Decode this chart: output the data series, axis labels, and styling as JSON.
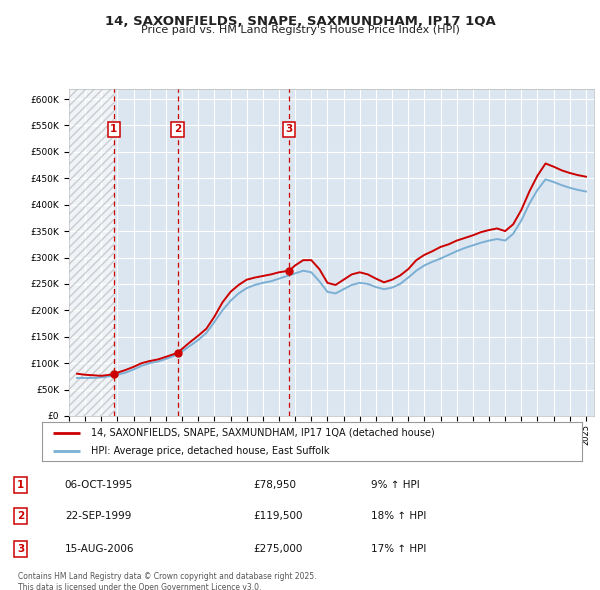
{
  "title": "14, SAXONFIELDS, SNAPE, SAXMUNDHAM, IP17 1QA",
  "subtitle": "Price paid vs. HM Land Registry's House Price Index (HPI)",
  "legend_line1": "14, SAXONFIELDS, SNAPE, SAXMUNDHAM, IP17 1QA (detached house)",
  "legend_line2": "HPI: Average price, detached house, East Suffolk",
  "transactions": [
    {
      "num": 1,
      "date": "06-OCT-1995",
      "price": 78950,
      "hpi_pct": "9% ↑ HPI",
      "year": 1995.77
    },
    {
      "num": 2,
      "date": "22-SEP-1999",
      "price": 119500,
      "hpi_pct": "18% ↑ HPI",
      "year": 1999.72
    },
    {
      "num": 3,
      "date": "15-AUG-2006",
      "price": 275000,
      "hpi_pct": "17% ↑ HPI",
      "year": 2006.62
    }
  ],
  "ylabel_ticks": [
    "£0",
    "£50K",
    "£100K",
    "£150K",
    "£200K",
    "£250K",
    "£300K",
    "£350K",
    "£400K",
    "£450K",
    "£500K",
    "£550K",
    "£600K"
  ],
  "ytick_vals": [
    0,
    50000,
    100000,
    150000,
    200000,
    250000,
    300000,
    350000,
    400000,
    450000,
    500000,
    550000,
    600000
  ],
  "ylim": [
    0,
    620000
  ],
  "xlim_start": 1993.0,
  "xlim_end": 2025.5,
  "hatch_end": 1995.77,
  "plot_bg": "#dce6f0",
  "grid_color": "#ffffff",
  "red_line_color": "#cc0000",
  "blue_line_color": "#7bafd4",
  "footnote": "Contains HM Land Registry data © Crown copyright and database right 2025.\nThis data is licensed under the Open Government Licence v3.0.",
  "red_hpi_line": {
    "years": [
      1993.5,
      1994.0,
      1994.5,
      1995.0,
      1995.77,
      1996.0,
      1996.5,
      1997.0,
      1997.5,
      1998.0,
      1998.5,
      1999.0,
      1999.72,
      2000.0,
      2000.5,
      2001.0,
      2001.5,
      2002.0,
      2002.5,
      2003.0,
      2003.5,
      2004.0,
      2004.5,
      2005.0,
      2005.5,
      2006.0,
      2006.62,
      2007.0,
      2007.5,
      2008.0,
      2008.5,
      2009.0,
      2009.5,
      2010.0,
      2010.5,
      2011.0,
      2011.5,
      2012.0,
      2012.5,
      2013.0,
      2013.5,
      2014.0,
      2014.5,
      2015.0,
      2015.5,
      2016.0,
      2016.5,
      2017.0,
      2017.5,
      2018.0,
      2018.5,
      2019.0,
      2019.5,
      2020.0,
      2020.5,
      2021.0,
      2021.5,
      2022.0,
      2022.5,
      2023.0,
      2023.5,
      2024.0,
      2024.5,
      2025.0
    ],
    "values": [
      80000,
      78000,
      77000,
      76000,
      78950,
      82000,
      87000,
      93000,
      100000,
      104000,
      107000,
      112000,
      119500,
      127000,
      140000,
      152000,
      165000,
      188000,
      215000,
      235000,
      248000,
      258000,
      262000,
      265000,
      268000,
      272000,
      275000,
      285000,
      295000,
      295000,
      278000,
      252000,
      248000,
      258000,
      268000,
      272000,
      268000,
      260000,
      253000,
      258000,
      266000,
      278000,
      295000,
      305000,
      312000,
      320000,
      325000,
      332000,
      337000,
      342000,
      348000,
      352000,
      355000,
      350000,
      363000,
      390000,
      425000,
      455000,
      478000,
      472000,
      465000,
      460000,
      456000,
      453000
    ]
  },
  "blue_hpi_line": {
    "years": [
      1993.5,
      1994.0,
      1994.5,
      1995.0,
      1995.5,
      1996.0,
      1996.5,
      1997.0,
      1997.5,
      1998.0,
      1998.5,
      1999.0,
      1999.5,
      2000.0,
      2000.5,
      2001.0,
      2001.5,
      2002.0,
      2002.5,
      2003.0,
      2003.5,
      2004.0,
      2004.5,
      2005.0,
      2005.5,
      2006.0,
      2006.5,
      2007.0,
      2007.5,
      2008.0,
      2008.5,
      2009.0,
      2009.5,
      2010.0,
      2010.5,
      2011.0,
      2011.5,
      2012.0,
      2012.5,
      2013.0,
      2013.5,
      2014.0,
      2014.5,
      2015.0,
      2015.5,
      2016.0,
      2016.5,
      2017.0,
      2017.5,
      2018.0,
      2018.5,
      2019.0,
      2019.5,
      2020.0,
      2020.5,
      2021.0,
      2021.5,
      2022.0,
      2022.5,
      2023.0,
      2023.5,
      2024.0,
      2024.5,
      2025.0
    ],
    "values": [
      72000,
      72000,
      72000,
      73000,
      75000,
      78000,
      82000,
      88000,
      95000,
      100000,
      103000,
      108000,
      114000,
      122000,
      133000,
      144000,
      157000,
      178000,
      200000,
      218000,
      232000,
      242000,
      248000,
      252000,
      255000,
      260000,
      265000,
      270000,
      275000,
      272000,
      255000,
      235000,
      232000,
      240000,
      248000,
      252000,
      250000,
      244000,
      240000,
      243000,
      250000,
      262000,
      275000,
      285000,
      292000,
      298000,
      305000,
      312000,
      318000,
      323000,
      328000,
      332000,
      335000,
      332000,
      345000,
      370000,
      402000,
      428000,
      448000,
      443000,
      437000,
      432000,
      428000,
      425000
    ]
  }
}
